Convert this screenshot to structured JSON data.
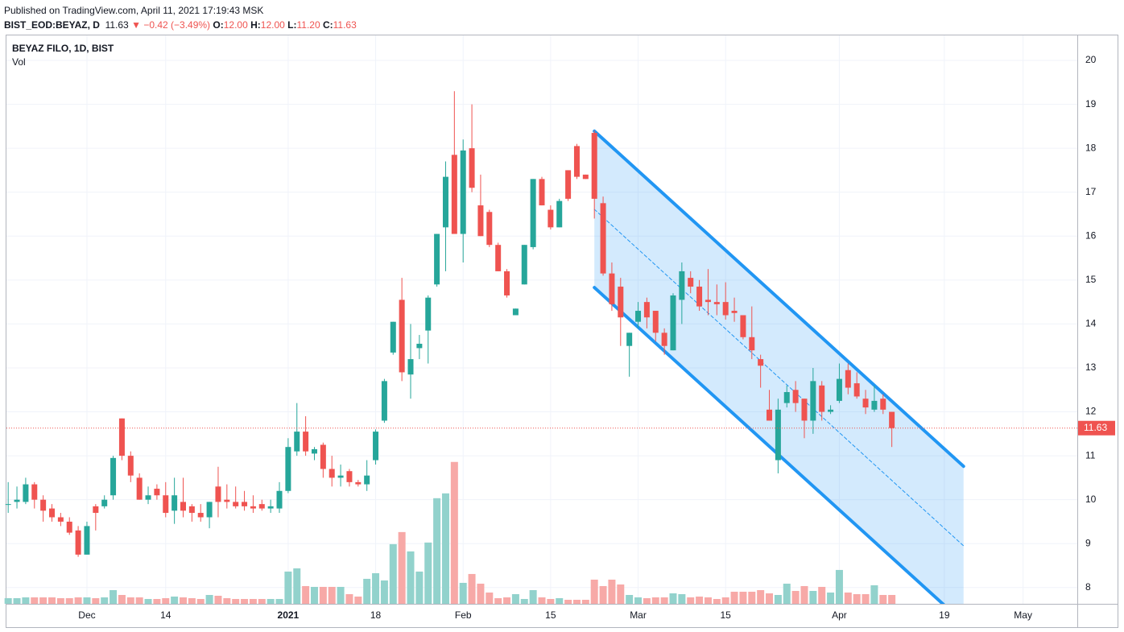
{
  "header": {
    "published": "Published on TradingView.com, April 11, 2021 17:19:43 MSK",
    "symbol": "BIST_EOD:BEYAZ, D",
    "last": "11.63",
    "arrow": "▼",
    "change": "−0.42 (−3.49%)",
    "o_label": "O:",
    "o": "12.00",
    "h_label": "H:",
    "h": "12.00",
    "l_label": "L:",
    "l": "11.20",
    "c_label": "C:",
    "c": "11.63"
  },
  "chart_data": {
    "type": "candlestick",
    "title": "BEYAZ FILO, 1D, BIST",
    "volume_label": "Vol",
    "open": [
      9.9,
      9.95,
      9.95,
      10.35,
      10.0,
      9.8,
      9.6,
      9.5,
      9.3,
      8.75,
      9.85,
      9.85,
      10.1,
      11.85,
      11.0,
      10.5,
      10.0,
      10.25,
      10.1,
      9.75,
      9.95,
      9.85,
      9.7,
      9.6,
      10.3,
      10.0,
      9.95,
      9.95,
      9.85,
      9.9,
      9.8,
      9.8,
      10.2,
      11.1,
      11.55,
      11.05,
      11.25,
      10.7,
      10.5,
      10.65,
      10.4,
      10.35,
      10.9,
      11.8,
      13.35,
      14.55,
      12.85,
      13.45,
      13.85,
      14.9,
      16.2,
      17.85,
      16.05,
      18.0,
      16.7,
      16.55,
      15.8,
      15.2,
      14.2,
      14.9,
      15.75,
      17.3,
      16.6,
      16.2,
      17.5,
      18.05,
      17.4,
      18.35,
      16.75,
      15.15,
      14.85,
      13.5,
      14.05,
      14.5,
      14.3,
      13.8,
      13.4,
      14.55,
      15.05,
      14.85,
      14.55,
      14.5,
      14.5,
      14.3,
      14.2,
      13.7,
      13.2,
      12.05,
      10.9,
      12.2,
      12.5,
      12.3,
      11.8,
      12.6,
      12.0,
      12.25,
      12.95,
      12.65,
      12.3,
      12.05,
      12.3,
      12.0
    ],
    "high": [
      10.4,
      10.3,
      10.5,
      10.4,
      10.1,
      9.9,
      9.7,
      9.6,
      9.4,
      9.5,
      9.9,
      10.1,
      11.0,
      11.85,
      11.1,
      10.6,
      10.3,
      10.35,
      10.4,
      10.5,
      10.5,
      9.9,
      9.9,
      9.95,
      10.75,
      10.35,
      10.3,
      10.2,
      10.1,
      10.0,
      10.0,
      10.4,
      11.4,
      12.2,
      11.9,
      11.2,
      11.3,
      11.0,
      10.8,
      10.7,
      10.45,
      10.9,
      11.6,
      12.75,
      14.05,
      15.05,
      14.0,
      13.75,
      14.65,
      16.05,
      17.7,
      19.3,
      18.2,
      19.0,
      17.4,
      16.6,
      15.85,
      15.25,
      14.35,
      15.8,
      17.3,
      17.35,
      16.7,
      16.85,
      17.5,
      18.1,
      17.4,
      18.4,
      16.9,
      15.4,
      15.05,
      13.8,
      14.5,
      14.6,
      14.3,
      13.9,
      14.7,
      15.4,
      15.2,
      15.0,
      15.25,
      14.9,
      14.95,
      14.6,
      14.2,
      14.4,
      13.3,
      12.5,
      12.3,
      12.6,
      12.7,
      12.3,
      13.0,
      12.7,
      12.15,
      13.1,
      13.1,
      12.9,
      12.5,
      12.6,
      12.4,
      12.0
    ],
    "low": [
      9.7,
      9.8,
      9.9,
      9.8,
      9.5,
      9.5,
      9.4,
      9.2,
      8.7,
      8.75,
      9.3,
      9.8,
      10.0,
      10.9,
      10.4,
      10.0,
      9.9,
      10.0,
      9.6,
      9.45,
      9.6,
      9.5,
      9.5,
      9.35,
      9.6,
      9.8,
      9.8,
      9.75,
      9.7,
      9.75,
      9.7,
      9.7,
      10.15,
      11.0,
      11.0,
      10.9,
      10.5,
      10.3,
      10.3,
      10.3,
      10.3,
      10.2,
      10.8,
      11.75,
      13.3,
      12.7,
      12.3,
      13.2,
      13.1,
      14.85,
      15.2,
      16.05,
      15.4,
      17.0,
      16.0,
      15.75,
      15.2,
      14.6,
      14.2,
      14.9,
      15.7,
      16.7,
      16.15,
      16.2,
      16.8,
      17.3,
      17.3,
      16.4,
      15.1,
      14.3,
      13.5,
      12.8,
      13.9,
      13.9,
      13.6,
      13.3,
      13.4,
      14.0,
      14.7,
      14.3,
      14.2,
      14.2,
      14.1,
      14.05,
      13.65,
      13.2,
      12.55,
      11.8,
      10.6,
      12.1,
      12.0,
      11.4,
      11.5,
      11.8,
      11.95,
      12.2,
      12.4,
      12.3,
      11.95,
      12.0,
      11.95,
      11.2
    ],
    "close": [
      9.9,
      10.0,
      10.35,
      10.0,
      9.75,
      9.6,
      9.5,
      9.25,
      8.75,
      9.4,
      9.7,
      10.0,
      10.95,
      11.0,
      10.55,
      10.0,
      10.1,
      10.1,
      9.7,
      10.1,
      9.75,
      9.7,
      9.6,
      9.95,
      9.95,
      9.95,
      9.85,
      9.85,
      9.8,
      9.8,
      9.85,
      10.2,
      11.2,
      11.55,
      11.1,
      11.15,
      10.7,
      10.5,
      10.55,
      10.4,
      10.35,
      10.55,
      11.55,
      12.7,
      14.05,
      12.9,
      13.2,
      13.55,
      14.6,
      16.05,
      17.35,
      16.05,
      17.95,
      17.1,
      16.0,
      15.8,
      15.2,
      14.65,
      14.35,
      15.8,
      17.3,
      16.7,
      16.2,
      16.8,
      16.85,
      17.35,
      17.3,
      16.85,
      15.15,
      14.45,
      14.15,
      13.8,
      14.3,
      14.15,
      13.8,
      13.5,
      14.65,
      15.2,
      14.85,
      14.4,
      14.5,
      14.45,
      14.2,
      14.25,
      13.7,
      13.4,
      13.05,
      11.8,
      12.05,
      12.45,
      12.2,
      11.8,
      12.7,
      12.0,
      12.05,
      12.75,
      12.55,
      12.35,
      12.1,
      12.25,
      12.05,
      11.63
    ],
    "volume": [
      7,
      7,
      8,
      8,
      8,
      8,
      7,
      7,
      8,
      8,
      7,
      8,
      17,
      11,
      8,
      8,
      6,
      6,
      7,
      9,
      8,
      7,
      6,
      11,
      10,
      7,
      6,
      6,
      6,
      6,
      6,
      6,
      40,
      44,
      22,
      21,
      21,
      21,
      21,
      12,
      9,
      31,
      38,
      29,
      74,
      89,
      65,
      40,
      76,
      131,
      137,
      176,
      26,
      37,
      25,
      14,
      7,
      8,
      12,
      6,
      17,
      8,
      6,
      7,
      5,
      5,
      5,
      30,
      22,
      30,
      24,
      11,
      8,
      7,
      8,
      8,
      13,
      12,
      8,
      9,
      8,
      6,
      8,
      15,
      15,
      15,
      17,
      13,
      11,
      25,
      16,
      22,
      16,
      21,
      14,
      42,
      14,
      12,
      12,
      23,
      11,
      11
    ],
    "up_color": "#26a69a",
    "down_color": "#ef5350",
    "up_volume_color": "#92d2cc",
    "down_volume_color": "#f7a9a7",
    "xlim": [
      -0.2,
      122.2
    ],
    "xticks": [
      {
        "value": 9,
        "label": "Dec"
      },
      {
        "value": 18,
        "label": "14"
      },
      {
        "value": 32,
        "label": "2021"
      },
      {
        "value": 42,
        "label": "18"
      },
      {
        "value": 52,
        "label": "Feb"
      },
      {
        "value": 62,
        "label": "15"
      },
      {
        "value": 72,
        "label": "Mar"
      },
      {
        "value": 82,
        "label": "15"
      },
      {
        "value": 95,
        "label": "Apr"
      },
      {
        "value": 107,
        "label": "19"
      },
      {
        "value": 116,
        "label": "May"
      }
    ],
    "ylim": [
      7.63,
      20.55
    ],
    "yticks": [
      8,
      9,
      10,
      11,
      12,
      13,
      14,
      15,
      16,
      17,
      18,
      19,
      20
    ],
    "grid": true,
    "last_price": 11.63,
    "channel": {
      "color": "#2196f3",
      "upper": [
        [
          67,
          18.39
        ],
        [
          109.2,
          10.76
        ]
      ],
      "middle": [
        [
          67,
          16.61
        ],
        [
          109.2,
          8.95
        ]
      ],
      "lower": [
        [
          67,
          14.83
        ],
        [
          109.2,
          7.2
        ]
      ]
    }
  }
}
